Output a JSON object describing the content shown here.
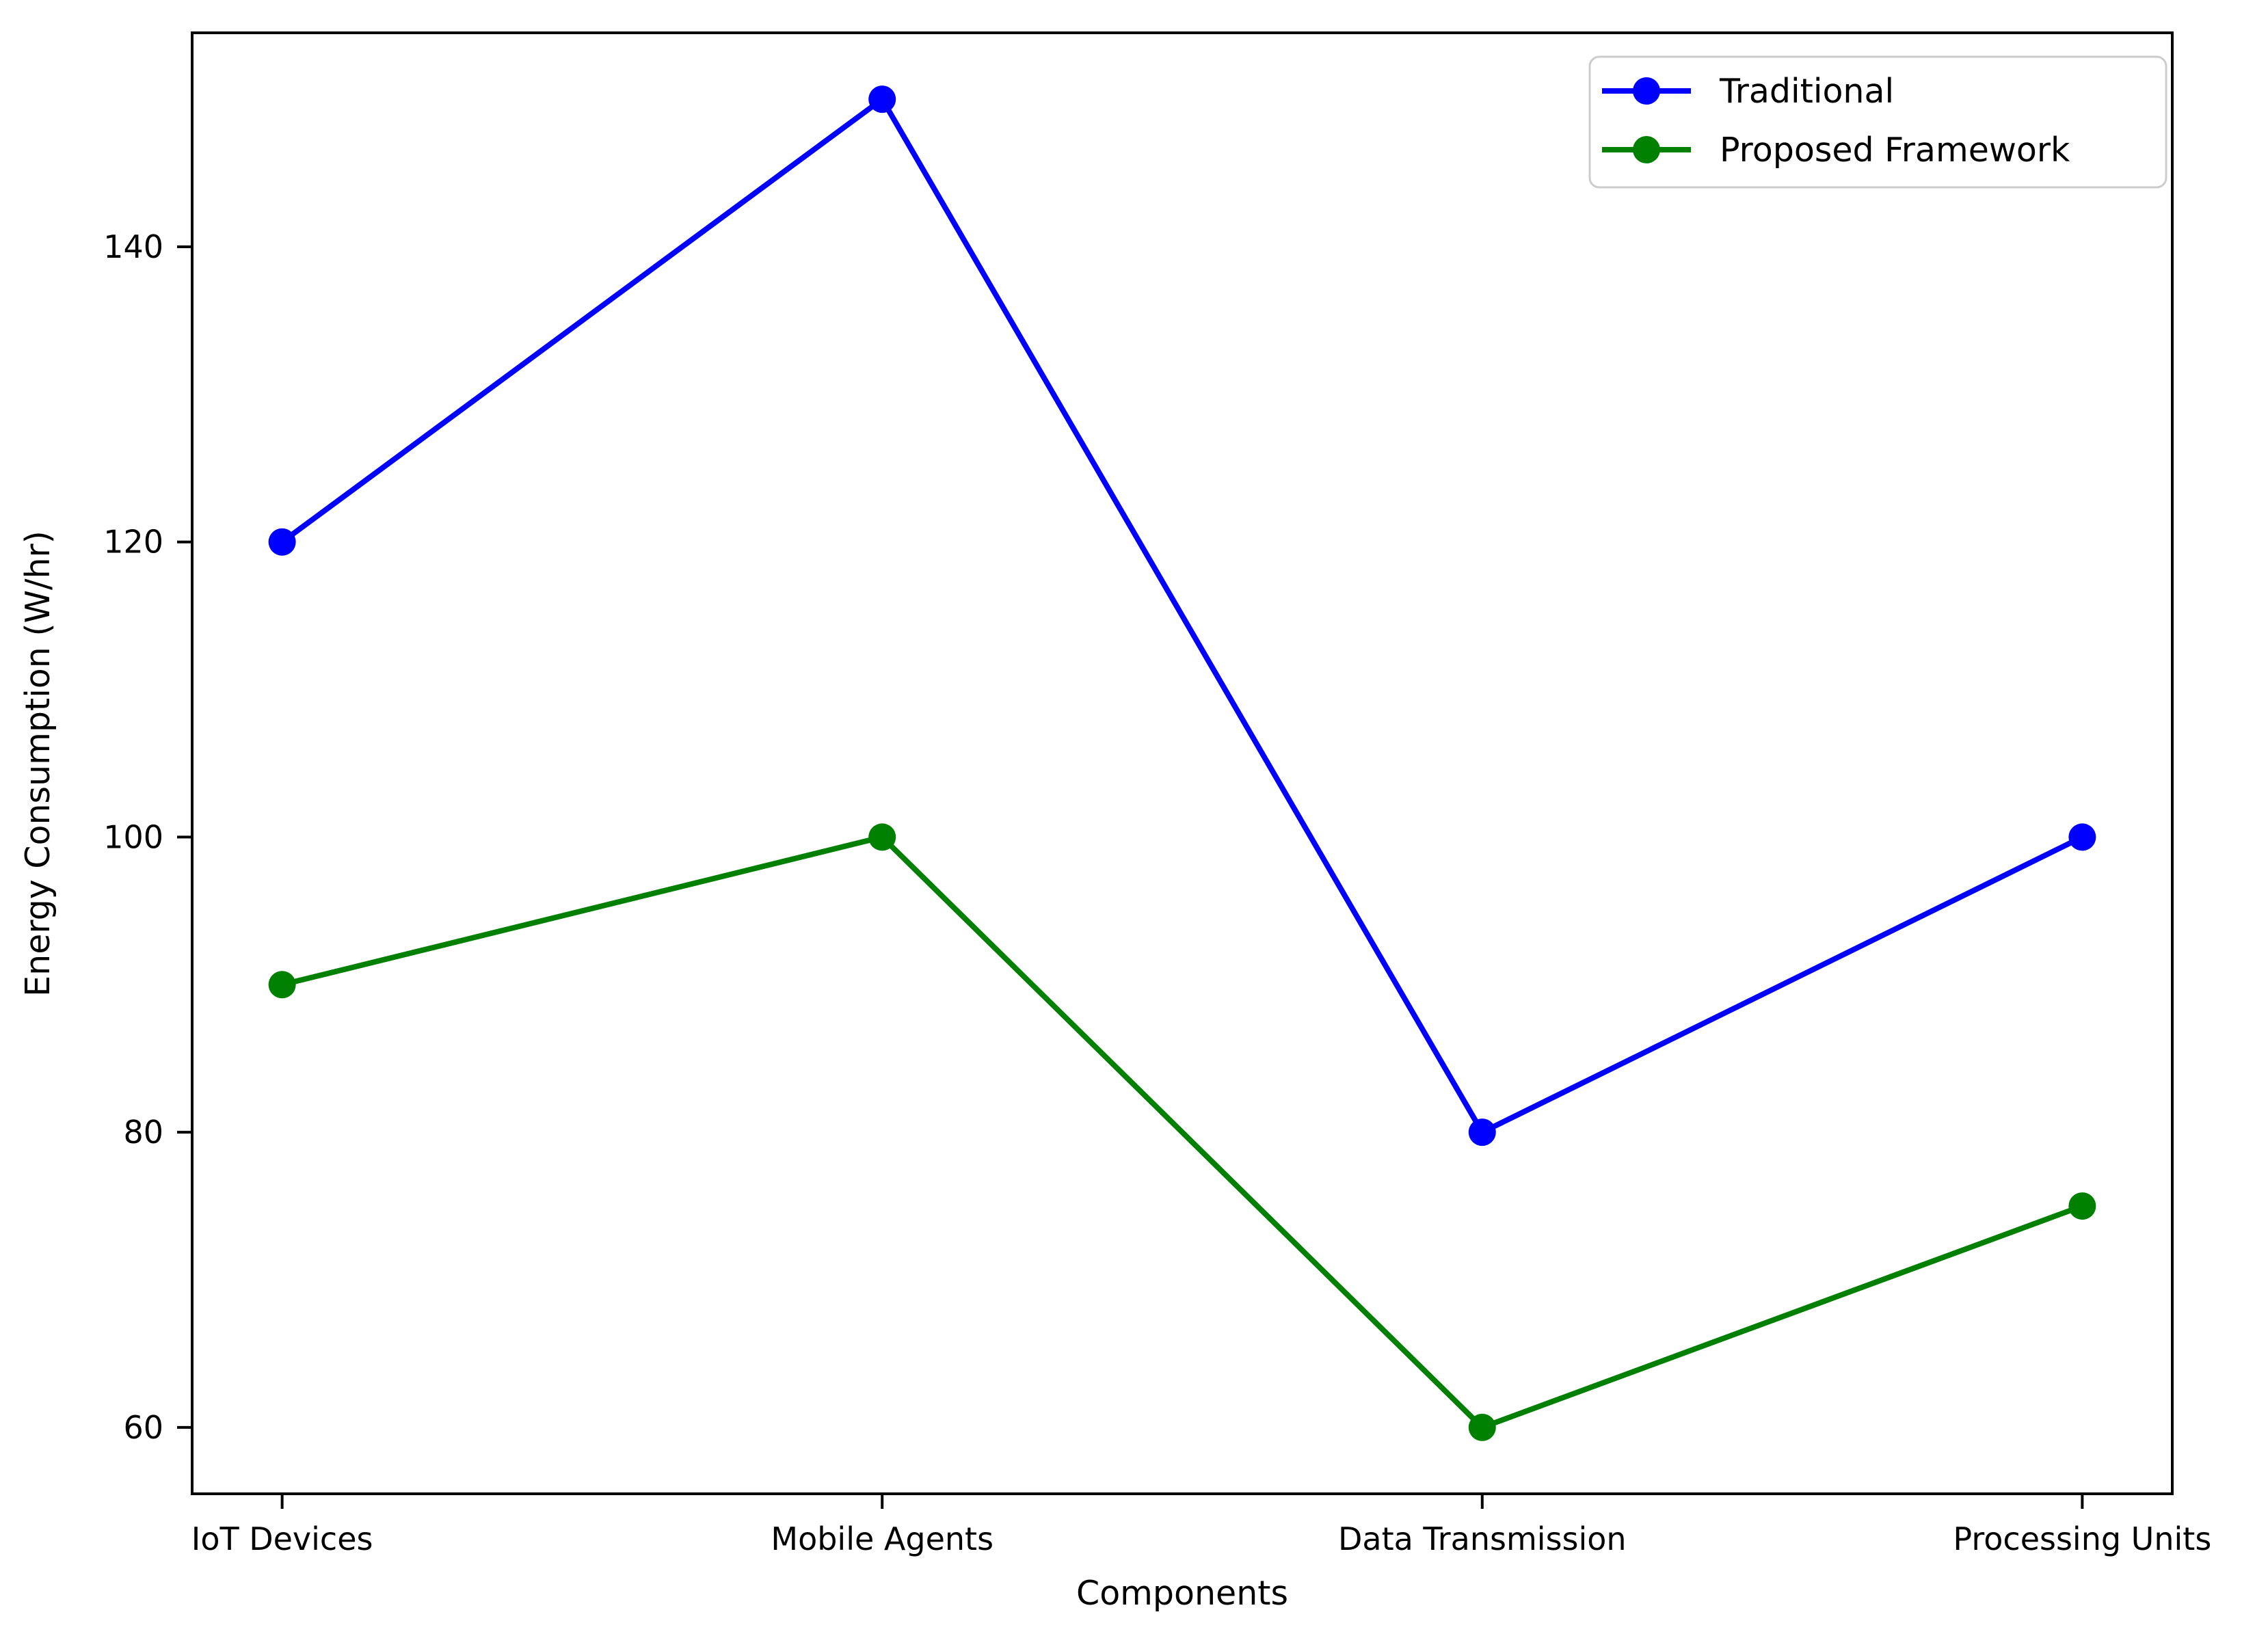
{
  "figure": {
    "background": "#ffffff",
    "axis_color": "#000000",
    "text_color": "#000000",
    "legend_border_color": "#cccccc"
  },
  "chart_data": {
    "type": "line",
    "title": "",
    "xlabel": "Components",
    "ylabel": "Energy Consumption (W/hr)",
    "categories": [
      "IoT Devices",
      "Mobile Agents",
      "Data Transmission",
      "Processing Units"
    ],
    "series": [
      {
        "name": "Traditional",
        "color": "#0000ff",
        "marker": "circle",
        "values": [
          120,
          150,
          80,
          100
        ]
      },
      {
        "name": "Proposed Framework",
        "color": "#008000",
        "marker": "circle",
        "values": [
          90,
          100,
          60,
          75
        ]
      }
    ],
    "yticks": [
      60,
      80,
      100,
      120,
      140
    ],
    "ylim": [
      55.5,
      154.5
    ],
    "xlim": [
      -0.15,
      3.15
    ],
    "grid": false,
    "legend": {
      "position": "upper right",
      "entries": [
        "Traditional",
        "Proposed Framework"
      ]
    }
  }
}
